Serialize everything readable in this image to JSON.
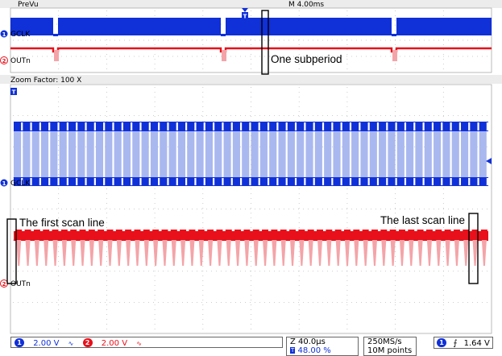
{
  "header": {
    "mode_label": "PreVu",
    "timebase_label": "M 4.00ms"
  },
  "zoom": {
    "factor_label": "Zoom Factor:  100 X"
  },
  "channels": {
    "ch1": {
      "number": "1",
      "name": "GCLK",
      "scale": "2.00 V",
      "color": "#1030d8",
      "light": "#aab8f0"
    },
    "ch2": {
      "number": "2",
      "name": "OUTn",
      "scale": "2.00 V",
      "color": "#e8101a",
      "light": "#f4a4a8"
    }
  },
  "trigger_marker": "T",
  "annotations": {
    "subperiod": "One subperiod",
    "first_scan": "The first scan line",
    "last_scan": "The last scan line"
  },
  "status": {
    "horizontal_scale": "Z 40.0µs",
    "trigger_position_prefix": "T",
    "trigger_position": "48.00 %",
    "sample_rate": "250MS/s",
    "record_length": "10M points",
    "trigger_channel": "1",
    "trigger_level": "1.64 V",
    "coupling_glyph": "∙"
  },
  "chart_data": {
    "type": "line",
    "overview": {
      "time_per_div_ms": 4.0,
      "gclk_gap_positions_div": [
        5.5,
        26.3,
        47.5
      ],
      "outn_dip_positions_div": [
        5.5,
        26.3,
        47.5
      ]
    },
    "zoom": {
      "factor": 100,
      "time_per_div_us": 40.0,
      "gclk_bursts": 52,
      "outn_pulses": 52
    },
    "grid": true
  }
}
